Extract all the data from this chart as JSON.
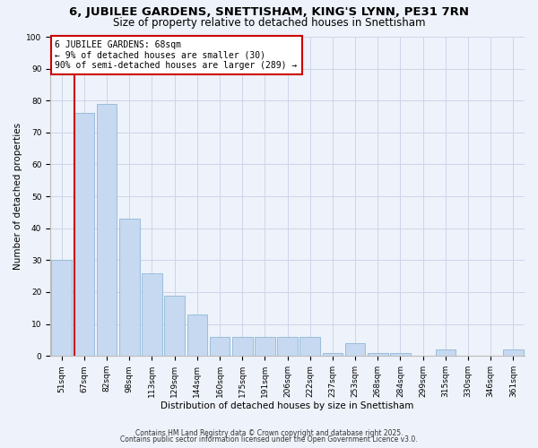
{
  "title": "6, JUBILEE GARDENS, SNETTISHAM, KING'S LYNN, PE31 7RN",
  "subtitle": "Size of property relative to detached houses in Snettisham",
  "xlabel": "Distribution of detached houses by size in Snettisham",
  "ylabel": "Number of detached properties",
  "bin_labels": [
    "51sqm",
    "67sqm",
    "82sqm",
    "98sqm",
    "113sqm",
    "129sqm",
    "144sqm",
    "160sqm",
    "175sqm",
    "191sqm",
    "206sqm",
    "222sqm",
    "237sqm",
    "253sqm",
    "268sqm",
    "284sqm",
    "299sqm",
    "315sqm",
    "330sqm",
    "346sqm",
    "361sqm"
  ],
  "bar_values": [
    30,
    76,
    79,
    43,
    26,
    19,
    13,
    6,
    6,
    6,
    6,
    6,
    1,
    4,
    1,
    1,
    0,
    2,
    0,
    0,
    2
  ],
  "bar_color": "#c6d9f0",
  "bar_edge_color": "#8fb8d8",
  "vline_color": "#cc0000",
  "ylim": [
    0,
    100
  ],
  "yticks": [
    0,
    10,
    20,
    30,
    40,
    50,
    60,
    70,
    80,
    90,
    100
  ],
  "annotation_text": "6 JUBILEE GARDENS: 68sqm\n← 9% of detached houses are smaller (30)\n90% of semi-detached houses are larger (289) →",
  "annotation_box_color": "#ffffff",
  "annotation_box_edge": "#cc0000",
  "footer1": "Contains HM Land Registry data © Crown copyright and database right 2025.",
  "footer2": "Contains public sector information licensed under the Open Government Licence v3.0.",
  "bg_color": "#eef2fa",
  "grid_color": "#cdd5ea",
  "title_fontsize": 9.5,
  "subtitle_fontsize": 8.5,
  "tick_fontsize": 6.5,
  "label_fontsize": 7.5,
  "ann_fontsize": 7,
  "footer_fontsize": 5.5
}
